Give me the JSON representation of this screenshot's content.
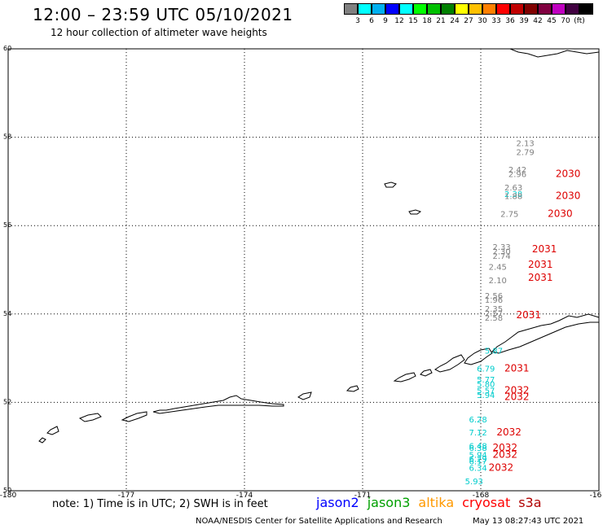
{
  "header": {
    "title": "12:00 – 23:59 UTC 05/10/2021",
    "subtitle": "12 hour collection of altimeter wave heights"
  },
  "scale": {
    "colors": [
      "#808080",
      "#00ffff",
      "#00b0f0",
      "#0000ff",
      "#00ffff",
      "#00ff00",
      "#00c000",
      "#008000",
      "#ffff00",
      "#ffc000",
      "#ff8000",
      "#ff0000",
      "#c00000",
      "#800000",
      "#800040",
      "#c000c0",
      "#400040",
      "#000000"
    ],
    "ticks": [
      "3",
      "6",
      "9",
      "12",
      "15",
      "18",
      "21",
      "24",
      "27",
      "30",
      "33",
      "36",
      "39",
      "42",
      "45",
      "70",
      "(ft)"
    ]
  },
  "axes": {
    "x_ticks": [
      "-180",
      "-177",
      "-174",
      "-171",
      "-168",
      "-16"
    ],
    "y_ticks": [
      "60",
      "58",
      "56",
      "54",
      "52",
      "50"
    ]
  },
  "observations": [
    {
      "v": "2.13",
      "c": "#808080",
      "lon": -167.1,
      "lat": 57.8
    },
    {
      "v": "2.79",
      "c": "#808080",
      "lon": -167.1,
      "lat": 57.6
    },
    {
      "v": "2.42",
      "c": "#808080",
      "lon": -167.3,
      "lat": 57.2
    },
    {
      "v": "2.96",
      "c": "#808080",
      "lon": -167.3,
      "lat": 57.1
    },
    {
      "v": "2.63",
      "c": "#808080",
      "lon": -167.4,
      "lat": 56.8
    },
    {
      "v": "2.38",
      "c": "#00cccc",
      "lon": -167.4,
      "lat": 56.65
    },
    {
      "v": "1.88",
      "c": "#808080",
      "lon": -167.4,
      "lat": 56.6
    },
    {
      "v": "2.75",
      "c": "#808080",
      "lon": -167.5,
      "lat": 56.2
    },
    {
      "v": "2.33",
      "c": "#808080",
      "lon": -167.7,
      "lat": 55.45
    },
    {
      "v": "2.30",
      "c": "#808080",
      "lon": -167.7,
      "lat": 55.35
    },
    {
      "v": "2.74",
      "c": "#808080",
      "lon": -167.7,
      "lat": 55.25
    },
    {
      "v": "2.45",
      "c": "#808080",
      "lon": -167.8,
      "lat": 55.0
    },
    {
      "v": "2.10",
      "c": "#808080",
      "lon": -167.8,
      "lat": 54.7
    },
    {
      "v": "2.56",
      "c": "#808080",
      "lon": -167.9,
      "lat": 54.35
    },
    {
      "v": "1.96",
      "c": "#808080",
      "lon": -167.9,
      "lat": 54.25
    },
    {
      "v": "2.35",
      "c": "#808080",
      "lon": -167.9,
      "lat": 54.05
    },
    {
      "v": "2.57",
      "c": "#808080",
      "lon": -167.9,
      "lat": 53.95
    },
    {
      "v": "2.58",
      "c": "#808080",
      "lon": -167.9,
      "lat": 53.85
    },
    {
      "v": "5.87",
      "c": "#00cccc",
      "lon": -167.9,
      "lat": 53.1
    },
    {
      "v": "6.79",
      "c": "#00cccc",
      "lon": -168.1,
      "lat": 52.7
    },
    {
      "v": "5.77",
      "c": "#00cccc",
      "lon": -168.1,
      "lat": 52.45
    },
    {
      "v": "5.80",
      "c": "#00cccc",
      "lon": -168.1,
      "lat": 52.35
    },
    {
      "v": "5.57",
      "c": "#00cccc",
      "lon": -168.1,
      "lat": 52.2
    },
    {
      "v": "5.94",
      "c": "#00cccc",
      "lon": -168.1,
      "lat": 52.1
    },
    {
      "v": "6.28",
      "c": "#00cccc",
      "lon": -168.3,
      "lat": 51.55
    },
    {
      "v": "7.12",
      "c": "#00cccc",
      "lon": -168.3,
      "lat": 51.25
    },
    {
      "v": "6.48",
      "c": "#00cccc",
      "lon": -168.3,
      "lat": 50.95
    },
    {
      "v": "6.38",
      "c": "#00cccc",
      "lon": -168.3,
      "lat": 50.9
    },
    {
      "v": "5.94",
      "c": "#00cccc",
      "lon": -168.3,
      "lat": 50.75
    },
    {
      "v": "6.29",
      "c": "#00cccc",
      "lon": -168.3,
      "lat": 50.65
    },
    {
      "v": "6.17",
      "c": "#00cccc",
      "lon": -168.3,
      "lat": 50.6
    },
    {
      "v": "6.34",
      "c": "#00cccc",
      "lon": -168.3,
      "lat": 50.45
    },
    {
      "v": "5.93",
      "c": "#00cccc",
      "lon": -168.4,
      "lat": 50.15
    }
  ],
  "pass_labels": [
    {
      "t": "2030",
      "lon": -166.1,
      "lat": 57.1
    },
    {
      "t": "2030",
      "lon": -166.1,
      "lat": 56.6
    },
    {
      "t": "2030",
      "lon": -166.3,
      "lat": 56.2
    },
    {
      "t": "2031",
      "lon": -166.7,
      "lat": 55.4
    },
    {
      "t": "2031",
      "lon": -166.8,
      "lat": 55.05
    },
    {
      "t": "2031",
      "lon": -166.8,
      "lat": 54.75
    },
    {
      "t": "2031",
      "lon": -167.1,
      "lat": 53.9
    },
    {
      "t": "2031",
      "lon": -167.4,
      "lat": 52.7
    },
    {
      "t": "2032",
      "lon": -167.4,
      "lat": 52.2
    },
    {
      "t": "2032",
      "lon": -167.4,
      "lat": 52.05
    },
    {
      "t": "2032",
      "lon": -167.6,
      "lat": 51.25
    },
    {
      "t": "2032",
      "lon": -167.7,
      "lat": 50.9
    },
    {
      "t": "2032",
      "lon": -167.7,
      "lat": 50.75
    },
    {
      "t": "2032",
      "lon": -167.8,
      "lat": 50.45
    }
  ],
  "footer": {
    "note": "note:  1) Time is in UTC;  2) SWH is in feet",
    "legend": [
      {
        "name": "jason2",
        "color": "#0000ff"
      },
      {
        "name": "jason3",
        "color": "#00a000"
      },
      {
        "name": "altika",
        "color": "#ff9900"
      },
      {
        "name": "cryosat",
        "color": "#ff0000"
      },
      {
        "name": "s3a",
        "color": "#b00000"
      }
    ],
    "credit": "NOAA/NESDIS Center for Satellite Applications and Research",
    "timestamp": "May 13 08:27:43 UTC 2021"
  }
}
